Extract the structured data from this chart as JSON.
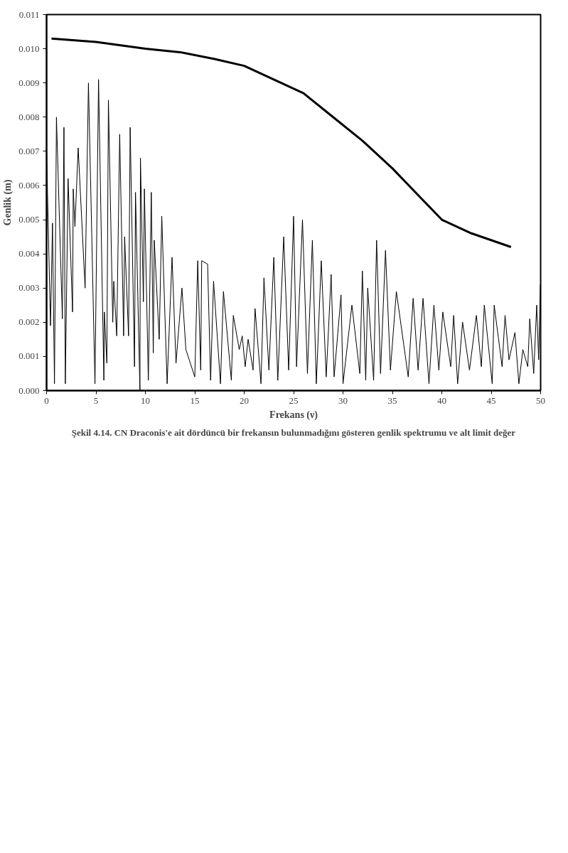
{
  "chart_data": {
    "type": "line",
    "xlabel": "Frekans (ν)",
    "ylabel": "Genlik (m)",
    "annotations": [
      "Şekil 4.14. CN Draconis'e ait dördüncü bir frekansın bulunmadığını gösteren genlik spektrumu ve alt limit değer"
    ],
    "xlim": [
      0,
      50
    ],
    "xticks": [
      0,
      5,
      10,
      15,
      20,
      25,
      30,
      35,
      40,
      45,
      50
    ],
    "ylim": [
      0,
      0.011
    ],
    "yticks": [
      {
        "value": 0,
        "label": "0.000"
      },
      {
        "value": 0.001,
        "label": "0.001"
      },
      {
        "value": 0.002,
        "label": "0.002"
      },
      {
        "value": 0.003,
        "label": "0.003"
      },
      {
        "value": 0.004,
        "label": "0.004"
      },
      {
        "value": 0.005,
        "label": "0.005"
      },
      {
        "value": 0.006,
        "label": "0.006"
      },
      {
        "value": 0.007,
        "label": "0.007"
      },
      {
        "value": 0.008,
        "label": "0.008"
      },
      {
        "value": 0.009,
        "label": "0.009"
      },
      {
        "value": 0.01,
        "label": "0.010"
      },
      {
        "value": 0.011,
        "label": "0.011"
      }
    ],
    "grid": false,
    "marker": "none",
    "line_style": "solid",
    "series": [
      {
        "color": "#000000",
        "x": [
          0,
          0.4,
          0.6,
          0.8,
          1.0,
          1.6,
          1.76,
          1.9,
          2.18,
          2.63,
          2.7,
          2.87,
          3.2,
          3.9,
          4.24,
          4.9,
          5.26,
          5.8,
          5.85,
          6.1,
          6.26,
          6.7,
          6.8,
          7.1,
          7.4,
          7.8,
          7.9,
          8.3,
          8.46,
          8.9,
          9.0,
          9.45,
          9.5,
          9.8,
          9.9,
          10.3,
          10.6,
          10.8,
          10.9,
          11.4,
          11.66,
          12.2,
          12.7,
          13.1,
          13.7,
          14.1,
          15.0,
          15.3,
          15.6,
          15.7,
          16.3,
          16.6,
          16.9,
          17.6,
          17.9,
          18.7,
          18.9,
          19.5,
          19.8,
          20.1,
          20.4,
          20.9,
          21.1,
          21.7,
          22.0,
          22.5,
          23.0,
          23.4,
          24.0,
          24.5,
          25.0,
          25.3,
          25.9,
          26.4,
          26.9,
          27.3,
          27.8,
          28.3,
          28.8,
          29.1,
          29.8,
          30.0,
          30.9,
          31.7,
          31.96,
          32.3,
          32.5,
          33.1,
          33.4,
          33.8,
          34.3,
          34.8,
          35.4,
          36.6,
          37.1,
          37.6,
          38.1,
          38.7,
          39.2,
          39.7,
          40.1,
          40.9,
          41.2,
          41.6,
          42.1,
          42.8,
          43.5,
          44.0,
          44.3,
          45.1,
          45.3,
          46.1,
          46.4,
          46.8,
          47.4,
          47.8,
          48.2,
          48.7,
          48.9,
          49.3,
          49.6,
          49.8,
          49.97
        ],
        "values": [
          0.007,
          0.0019,
          0.0049,
          0.0002,
          0.008,
          0.0021,
          0.0077,
          0.0002,
          0.0062,
          0.0023,
          0.0059,
          0.0048,
          0.0071,
          0.003,
          0.009,
          0.0002,
          0.0091,
          0.0003,
          0.0023,
          0.0008,
          0.0085,
          0.002,
          0.0032,
          0.0016,
          0.0075,
          0.0016,
          0.0045,
          0.0016,
          0.0077,
          0.0007,
          0.0058,
          0.0,
          0.0068,
          0.0026,
          0.0059,
          0.0003,
          0.0058,
          0.0011,
          0.0044,
          0.0015,
          0.0051,
          0.0002,
          0.0039,
          0.0008,
          0.003,
          0.0012,
          0.0004,
          0.0038,
          0.0006,
          0.0038,
          0.0037,
          0.0003,
          0.0032,
          0.0002,
          0.0029,
          0.0003,
          0.0022,
          0.0012,
          0.0016,
          0.0007,
          0.0015,
          0.0006,
          0.0024,
          0.0002,
          0.0033,
          0.0006,
          0.0039,
          0.0003,
          0.0045,
          0.0006,
          0.0051,
          0.0007,
          0.005,
          0.0005,
          0.0044,
          0.0002,
          0.0038,
          0.0004,
          0.0034,
          0.0004,
          0.0028,
          0.0002,
          0.0025,
          0.0005,
          0.0035,
          0.0003,
          0.003,
          0.0003,
          0.0044,
          0.0005,
          0.0041,
          0.0006,
          0.0029,
          0.0004,
          0.0027,
          0.0006,
          0.0027,
          0.0002,
          0.0025,
          0.0006,
          0.0023,
          0.0007,
          0.0022,
          0.0002,
          0.002,
          0.0006,
          0.0022,
          0.0007,
          0.0025,
          0.0002,
          0.0025,
          0.0007,
          0.0022,
          0.0009,
          0.0017,
          0.0002,
          0.0012,
          0.0007,
          0.0021,
          0.0005,
          0.0025,
          0.0009,
          0.0031
        ]
      },
      {
        "color": "#000000",
        "x": [
          0.5,
          5,
          10,
          13.5,
          17,
          20,
          23,
          26,
          29,
          32,
          35,
          38,
          40,
          43,
          47
        ],
        "values": [
          0.0103,
          0.0102,
          0.01,
          0.0099,
          0.0097,
          0.0095,
          0.0091,
          0.0087,
          0.008,
          0.0073,
          0.0065,
          0.0056,
          0.005,
          0.0046,
          0.0042
        ]
      }
    ]
  }
}
